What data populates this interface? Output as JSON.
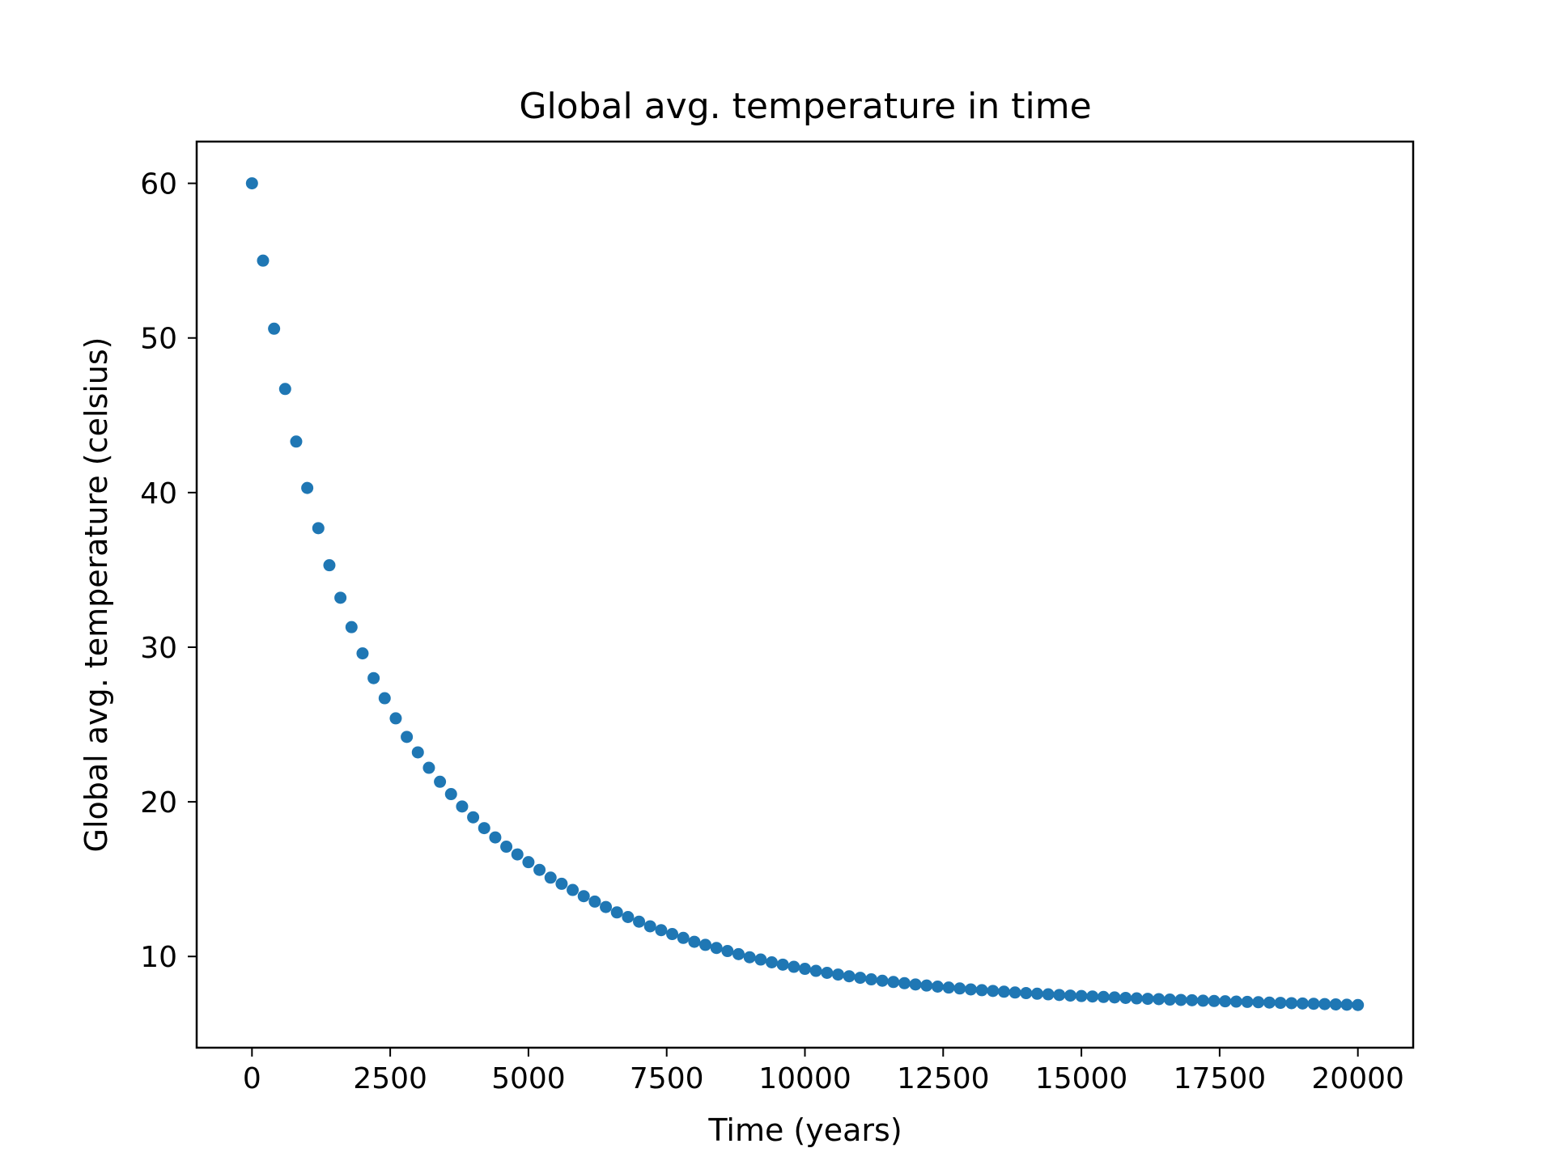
{
  "chart_data": {
    "type": "scatter",
    "title": "Global avg. temperature in time",
    "xlabel": "Time (years)",
    "ylabel": "Global avg. temperature (celsius)",
    "xlim": [
      -1000,
      21000
    ],
    "ylim": [
      4.1,
      62.7
    ],
    "xticks": [
      0,
      2500,
      5000,
      7500,
      10000,
      12500,
      15000,
      17500,
      20000
    ],
    "xtick_labels": [
      "0",
      "2500",
      "5000",
      "7500",
      "10000",
      "12500",
      "15000",
      "17500",
      "20000"
    ],
    "yticks": [
      10,
      20,
      30,
      40,
      50,
      60
    ],
    "ytick_labels": [
      "10",
      "20",
      "30",
      "40",
      "50",
      "60"
    ],
    "grid": false,
    "marker_color": "#1f77b4",
    "series": [
      {
        "x": [
          0,
          200,
          400,
          600,
          800,
          1000,
          1200,
          1400,
          1600,
          1800,
          2000,
          2200,
          2400,
          2600,
          2800,
          3000,
          3200,
          3400,
          3600,
          3800,
          4000,
          4200,
          4400,
          4600,
          4800,
          5000,
          5200,
          5400,
          5600,
          5800,
          6000,
          6200,
          6400,
          6600,
          6800,
          7000,
          7200,
          7400,
          7600,
          7800,
          8000,
          8200,
          8400,
          8600,
          8800,
          9000,
          9200,
          9400,
          9600,
          9800,
          10000,
          10200,
          10400,
          10600,
          10800,
          11000,
          11200,
          11400,
          11600,
          11800,
          12000,
          12200,
          12400,
          12600,
          12800,
          13000,
          13200,
          13400,
          13600,
          13800,
          14000,
          14200,
          14400,
          14600,
          14800,
          15000,
          15200,
          15400,
          15600,
          15800,
          16000,
          16200,
          16400,
          16600,
          16800,
          17000,
          17200,
          17400,
          17600,
          17800,
          18000,
          18200,
          18400,
          18600,
          18800,
          19000,
          19200,
          19400,
          19600,
          19800,
          20000
        ],
        "y": [
          60.0,
          55.0,
          50.6,
          46.7,
          43.3,
          40.3,
          37.7,
          35.3,
          33.2,
          31.3,
          29.6,
          28.0,
          26.7,
          25.4,
          24.2,
          23.2,
          22.2,
          21.3,
          20.5,
          19.7,
          19.0,
          18.3,
          17.7,
          17.1,
          16.6,
          16.1,
          15.6,
          15.1,
          14.7,
          14.3,
          13.9,
          13.55,
          13.2,
          12.85,
          12.55,
          12.25,
          11.95,
          11.7,
          11.45,
          11.2,
          10.95,
          10.75,
          10.55,
          10.35,
          10.15,
          9.95,
          9.8,
          9.62,
          9.47,
          9.33,
          9.2,
          9.07,
          8.94,
          8.83,
          8.72,
          8.62,
          8.52,
          8.43,
          8.35,
          8.27,
          8.19,
          8.12,
          8.05,
          7.99,
          7.93,
          7.87,
          7.82,
          7.77,
          7.72,
          7.67,
          7.63,
          7.59,
          7.55,
          7.51,
          7.47,
          7.44,
          7.41,
          7.38,
          7.35,
          7.32,
          7.29,
          7.26,
          7.24,
          7.21,
          7.19,
          7.17,
          7.14,
          7.12,
          7.1,
          7.08,
          7.06,
          7.04,
          7.02,
          7.0,
          6.98,
          6.96,
          6.94,
          6.92,
          6.9,
          6.88,
          6.86
        ]
      }
    ]
  }
}
